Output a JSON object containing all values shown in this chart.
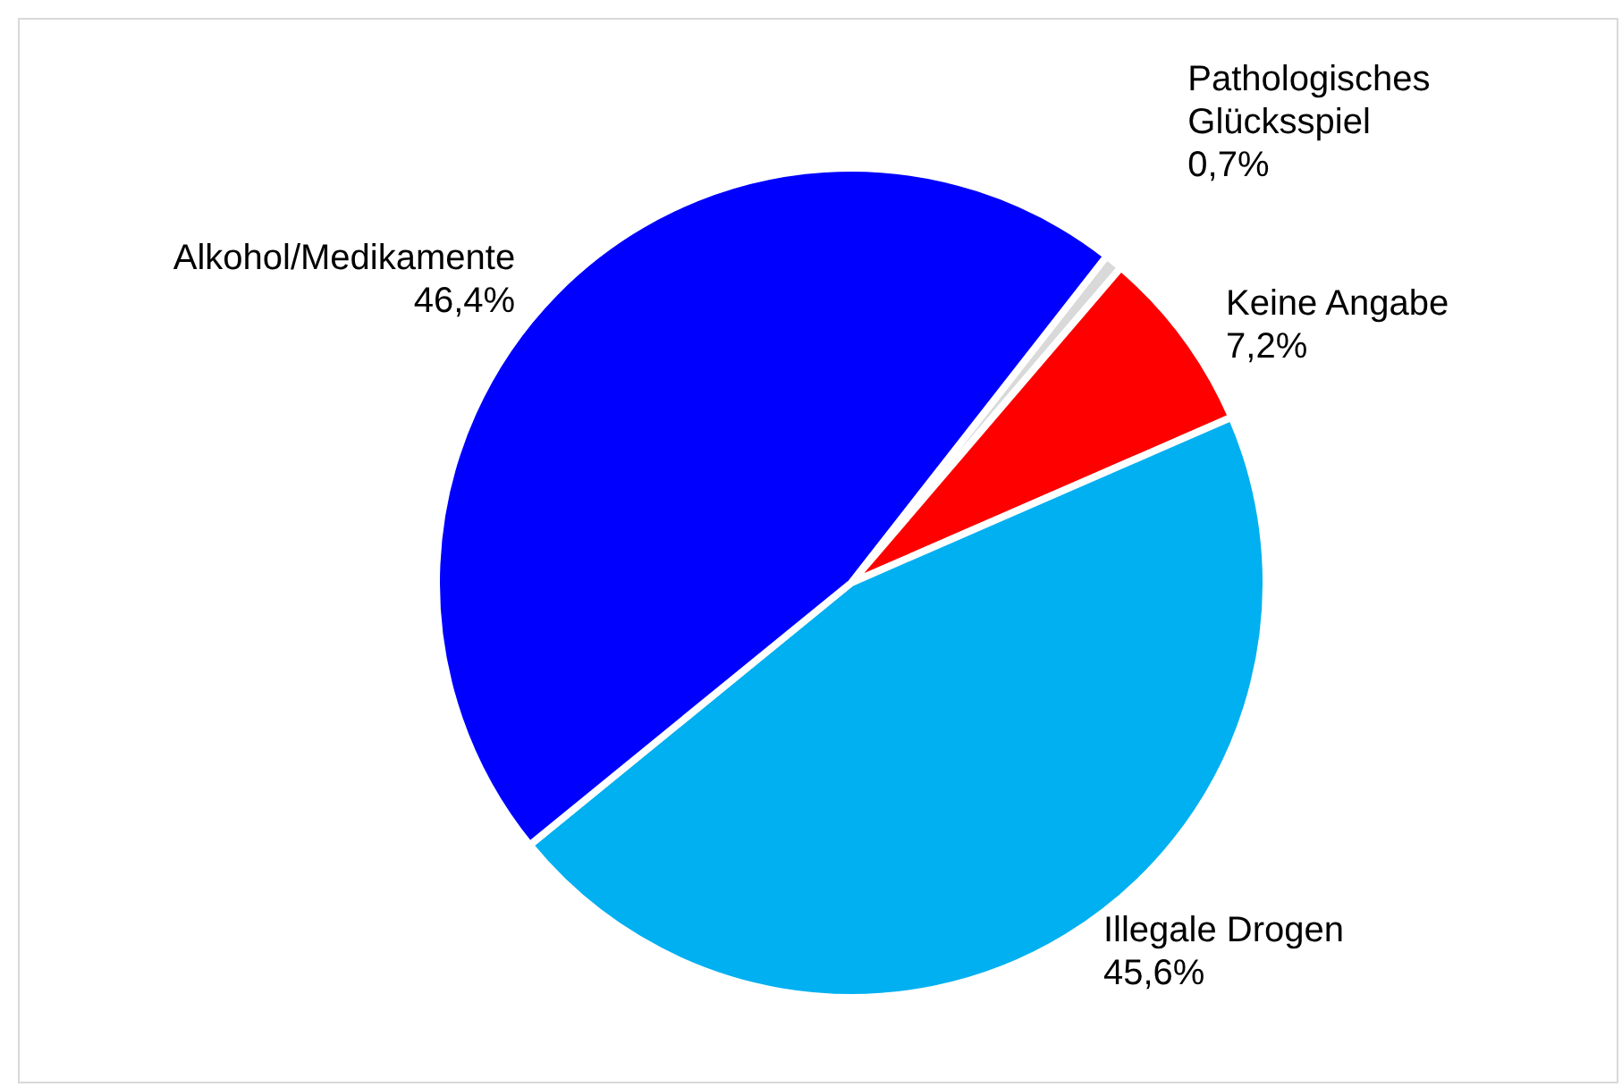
{
  "chart_data": {
    "type": "pie",
    "categories": [
      "Pathologisches Glücksspiel",
      "Keine Angabe",
      "Illegale Drogen",
      "Alkohol/Medikamente"
    ],
    "values": [
      0.7,
      7.2,
      45.6,
      46.4
    ],
    "colors": [
      "#d9d9d9",
      "#ff0000",
      "#00b0f0",
      "#0000ff"
    ],
    "value_labels": [
      "0,7%",
      "7,2%",
      "45,6%",
      "46,4%"
    ],
    "legend": false
  }
}
